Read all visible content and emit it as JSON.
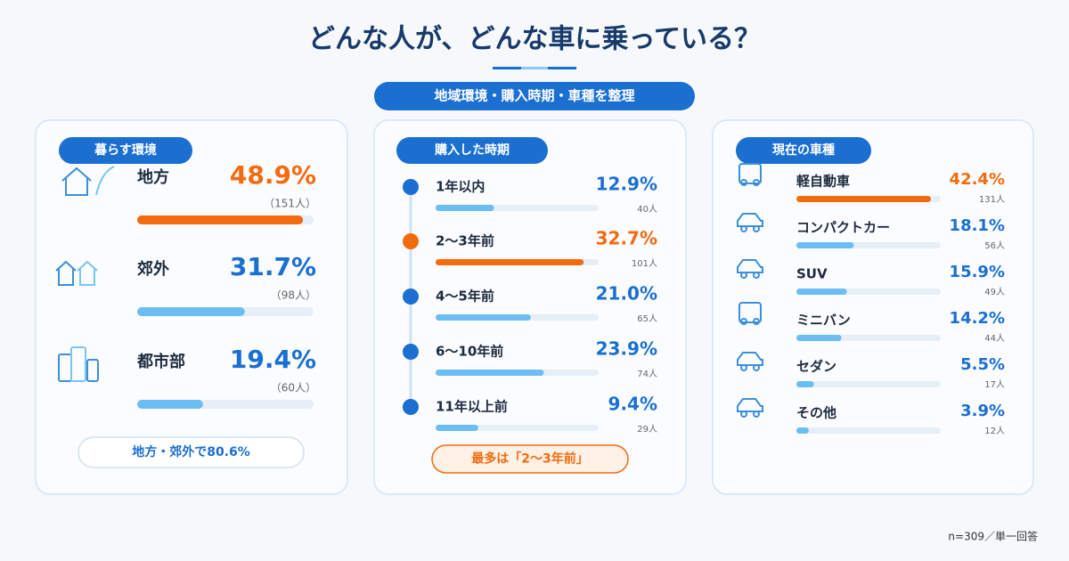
{
  "title": "どんな人が、どんな車に乗っている？",
  "subtitle": "地域環境・購入時期・車種を整理",
  "footnote": "n=309／単一回答",
  "panels": [
    {
      "type": "bar",
      "title": "暮らす環境",
      "xlim": [
        0,
        52
      ],
      "items": [
        {
          "label": "地方",
          "value": 48.9,
          "value_label": "48.9%",
          "count": "（151人）",
          "color": "#f26b0f"
        },
        {
          "label": "郊外",
          "value": 31.7,
          "value_label": "31.7%",
          "count": "（98人）",
          "color": "#6bbdf2"
        },
        {
          "label": "都市部",
          "value": 19.4,
          "value_label": "19.4%",
          "count": "（60人）",
          "color": "#6bbdf2"
        }
      ],
      "note": "地方・郊外で80.6%"
    },
    {
      "type": "bar",
      "title": "購入した時期",
      "xlim": [
        0,
        36
      ],
      "items": [
        {
          "label": "1年以内",
          "value": 12.9,
          "value_label": "12.9%",
          "count": "40人",
          "color": "#6bbdf2"
        },
        {
          "label": "2〜3年前",
          "value": 32.7,
          "value_label": "32.7%",
          "count": "101人",
          "color": "#f26b0f"
        },
        {
          "label": "4〜5年前",
          "value": 21.0,
          "value_label": "21.0%",
          "count": "65人",
          "color": "#6bbdf2"
        },
        {
          "label": "6〜10年前",
          "value": 23.9,
          "value_label": "23.9%",
          "count": "74人",
          "color": "#6bbdf2"
        },
        {
          "label": "11年以上前",
          "value": 9.4,
          "value_label": "9.4%",
          "count": "29人",
          "color": "#6bbdf2"
        }
      ],
      "note": "最多は「2〜3年前」"
    },
    {
      "type": "bar",
      "title": "現在の車種",
      "xlim": [
        0,
        45.5
      ],
      "items": [
        {
          "label": "軽自動車",
          "value": 42.4,
          "value_label": "42.4%",
          "count": "131人",
          "color": "#f26b0f"
        },
        {
          "label": "コンパクトカー",
          "value": 18.1,
          "value_label": "18.1%",
          "count": "56人",
          "color": "#6bbdf2"
        },
        {
          "label": "SUV",
          "value": 15.9,
          "value_label": "15.9%",
          "count": "49人",
          "color": "#6bbdf2"
        },
        {
          "label": "ミニバン",
          "value": 14.2,
          "value_label": "14.2%",
          "count": "44人",
          "color": "#6bbdf2"
        },
        {
          "label": "セダン",
          "value": 5.5,
          "value_label": "5.5%",
          "count": "17人",
          "color": "#6bbdf2"
        },
        {
          "label": "その他",
          "value": 3.9,
          "value_label": "3.9%",
          "count": "12人",
          "color": "#6bbdf2"
        }
      ]
    }
  ]
}
